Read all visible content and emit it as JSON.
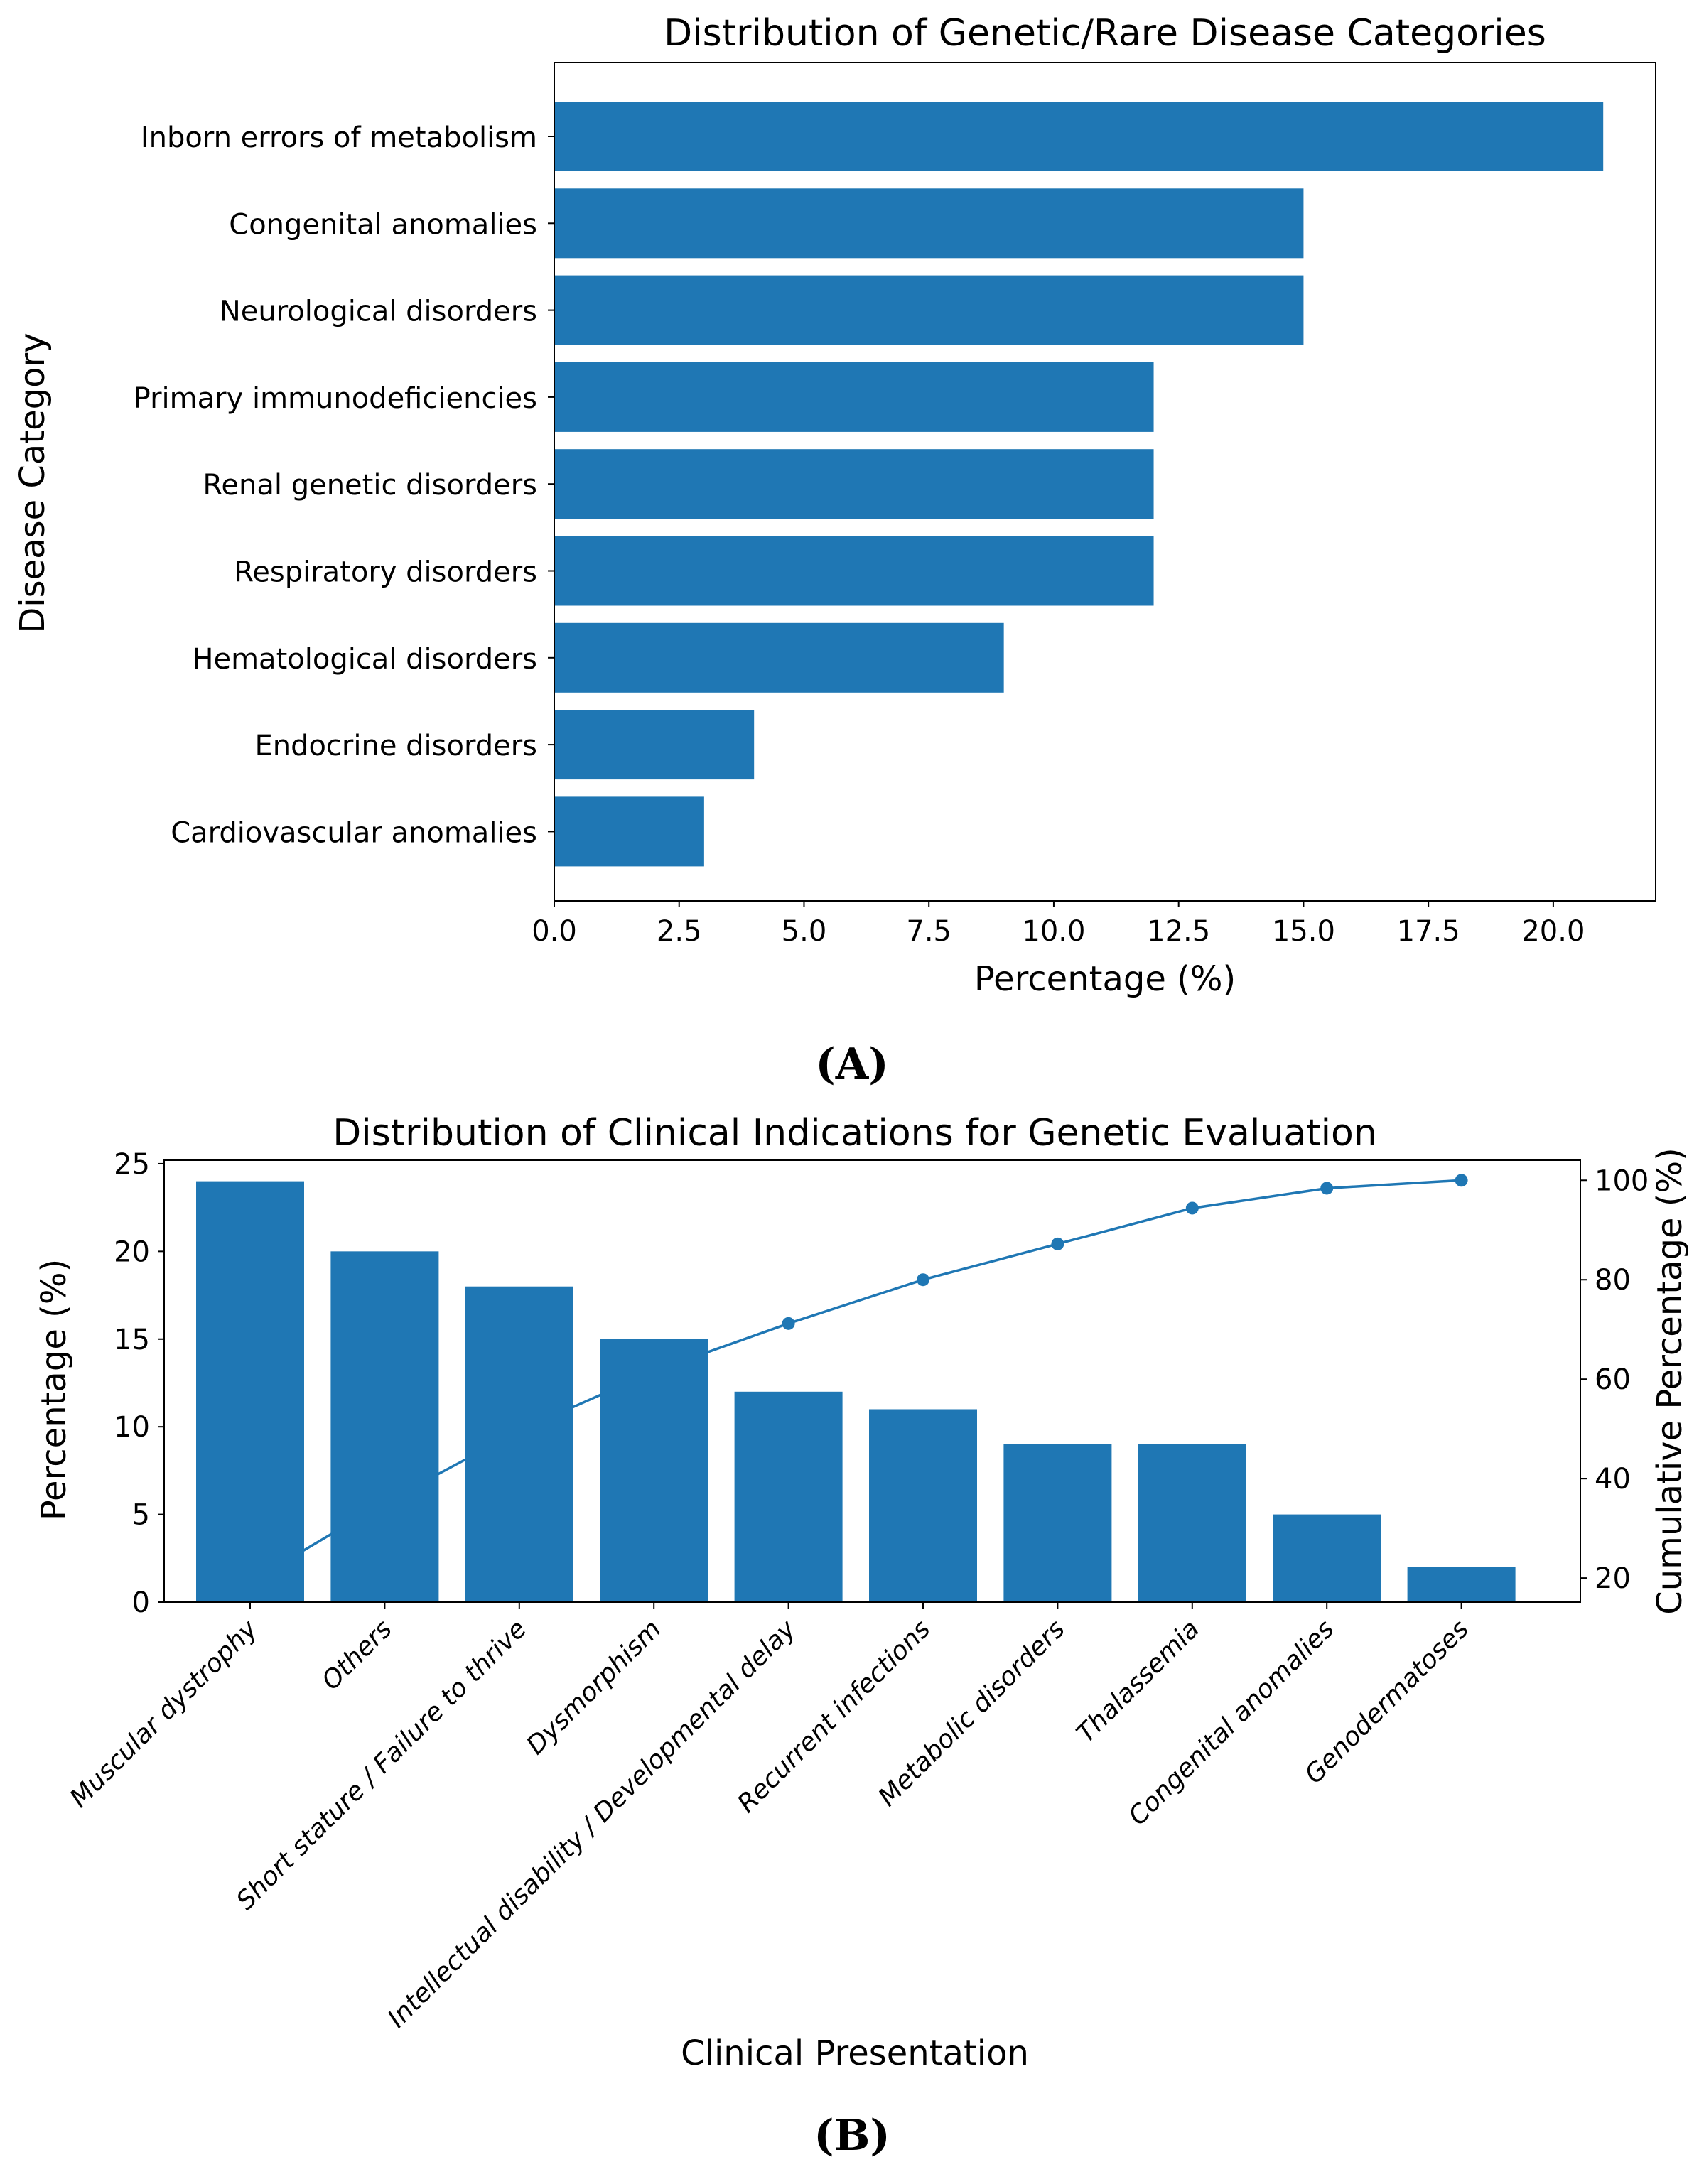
{
  "chart_data": [
    {
      "type": "bar",
      "orientation": "horizontal",
      "panel_label": "(A)",
      "title": "Distribution of Genetic/Rare Disease Categories",
      "xlabel": "Percentage (%)",
      "ylabel": "Disease Category",
      "categories": [
        "Inborn errors of metabolism",
        "Congenital anomalies",
        "Neurological disorders",
        "Primary immunodeficiencies",
        "Renal genetic disorders",
        "Respiratory disorders",
        "Hematological disorders",
        "Endocrine disorders",
        "Cardiovascular anomalies"
      ],
      "values": [
        21,
        15,
        15,
        12,
        12,
        12,
        9,
        4,
        3
      ],
      "xlim": [
        0,
        22.05
      ],
      "xticks": [
        "0.0",
        "2.5",
        "5.0",
        "7.5",
        "10.0",
        "12.5",
        "15.0",
        "17.5",
        "20.0"
      ],
      "grid": false,
      "color": "#1f77b4"
    },
    {
      "type": "bar",
      "panel_label": "(B)",
      "title": "Distribution of Clinical Indications for Genetic Evaluation",
      "xlabel": "Clinical Presentation",
      "ylabel": "Percentage (%)",
      "ylabel_right": "Cumulative Percentage (%)",
      "categories": [
        "Muscular dystrophy",
        "Others",
        "Short stature / Failure to thrive",
        "Dysmorphism",
        "Intellectual disability / Developmental delay",
        "Recurrent infections",
        "Metabolic disorders",
        "Thalassemia",
        "Congenital anomalies",
        "Genodermatoses"
      ],
      "values": [
        24,
        20,
        18,
        15,
        12,
        11,
        9,
        9,
        5,
        2
      ],
      "cumulative": [
        19.2,
        35.2,
        49.6,
        61.6,
        71.2,
        80.0,
        87.2,
        94.4,
        98.4,
        100.0
      ],
      "ylim": [
        0,
        25.2
      ],
      "ylim_right": [
        15.16,
        104.04
      ],
      "yticks": [
        "0",
        "5",
        "10",
        "15",
        "20",
        "25"
      ],
      "yticks_right": [
        "20",
        "40",
        "60",
        "80",
        "100"
      ],
      "grid": false,
      "color": "#1f77b4"
    }
  ]
}
